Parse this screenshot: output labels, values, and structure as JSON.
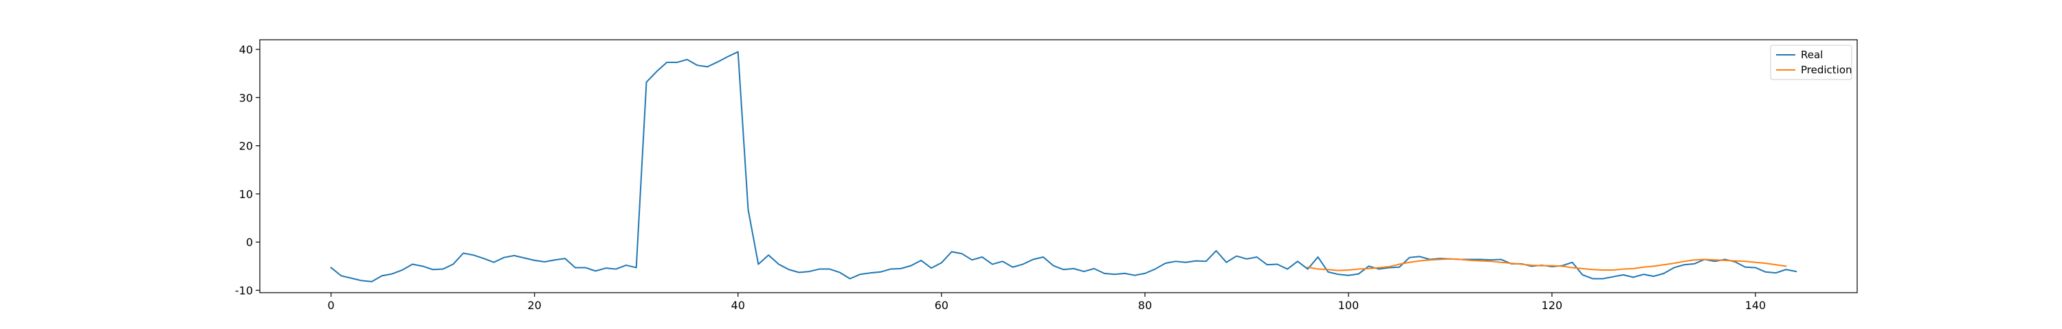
{
  "chart_data": {
    "type": "line",
    "title": "",
    "xlabel": "",
    "ylabel": "",
    "xlim": [
      -7,
      150
    ],
    "ylim": [
      -10.5,
      42
    ],
    "xticks": [
      0,
      20,
      40,
      60,
      80,
      100,
      120,
      140
    ],
    "yticks": [
      -10,
      0,
      10,
      20,
      30,
      40
    ],
    "grid": false,
    "legend_position": "top-right",
    "series": [
      {
        "name": "Real",
        "color": "#1f77b4",
        "x_start": 0,
        "values": [
          -5.3,
          -7.0,
          -7.5,
          -8.0,
          -8.2,
          -7.0,
          -6.6,
          -5.8,
          -4.6,
          -5.0,
          -5.7,
          -5.6,
          -4.6,
          -2.3,
          -2.7,
          -3.4,
          -4.2,
          -3.2,
          -2.8,
          -3.3,
          -3.8,
          -4.1,
          -3.7,
          -3.4,
          -5.3,
          -5.3,
          -6.0,
          -5.4,
          -5.6,
          -4.8,
          -5.3,
          33.2,
          35.4,
          37.3,
          37.3,
          37.9,
          36.7,
          36.4,
          37.4,
          38.5,
          39.5,
          6.7,
          -4.6,
          -2.7,
          -4.6,
          -5.7,
          -6.3,
          -6.1,
          -5.6,
          -5.6,
          -6.3,
          -7.6,
          -6.7,
          -6.4,
          -6.2,
          -5.6,
          -5.5,
          -4.9,
          -3.8,
          -5.4,
          -4.3,
          -2.0,
          -2.4,
          -3.7,
          -3.1,
          -4.6,
          -4.0,
          -5.2,
          -4.6,
          -3.6,
          -3.1,
          -4.9,
          -5.7,
          -5.5,
          -6.1,
          -5.5,
          -6.5,
          -6.7,
          -6.5,
          -6.9,
          -6.5,
          -5.6,
          -4.4,
          -4.0,
          -4.2,
          -3.9,
          -4.0,
          -1.8,
          -4.2,
          -2.9,
          -3.5,
          -3.1,
          -4.7,
          -4.6,
          -5.6,
          -4.0,
          -5.6,
          -3.1,
          -6.2,
          -6.7,
          -6.9,
          -6.6,
          -5.0,
          -5.6,
          -5.3,
          -5.2,
          -3.2,
          -3.0,
          -3.6,
          -3.4,
          -3.5,
          -3.6,
          -3.6,
          -3.6,
          -3.7,
          -3.6,
          -4.5,
          -4.5,
          -5.0,
          -4.8,
          -5.1,
          -4.9,
          -4.2,
          -6.8,
          -7.6,
          -7.6,
          -7.2,
          -6.8,
          -7.3,
          -6.7,
          -7.1,
          -6.5,
          -5.3,
          -4.7,
          -4.5,
          -3.6,
          -4.0,
          -3.6,
          -4.1,
          -5.2,
          -5.3,
          -6.2,
          -6.4,
          -5.7,
          -6.1
        ]
      },
      {
        "name": "Prediction",
        "color": "#ff7f0e",
        "x_start": 96,
        "values": [
          -5.2,
          -5.6,
          -5.7,
          -5.9,
          -5.8,
          -5.6,
          -5.5,
          -5.3,
          -5.1,
          -4.6,
          -4.2,
          -3.9,
          -3.7,
          -3.6,
          -3.5,
          -3.6,
          -3.8,
          -3.9,
          -4.0,
          -4.2,
          -4.4,
          -4.6,
          -4.8,
          -4.9,
          -4.9,
          -5.0,
          -5.3,
          -5.5,
          -5.7,
          -5.8,
          -5.8,
          -5.6,
          -5.5,
          -5.2,
          -5.0,
          -4.7,
          -4.4,
          -4.0,
          -3.7,
          -3.6,
          -3.7,
          -3.8,
          -3.9,
          -4.0,
          -4.2,
          -4.4,
          -4.7,
          -5.0
        ]
      }
    ]
  }
}
